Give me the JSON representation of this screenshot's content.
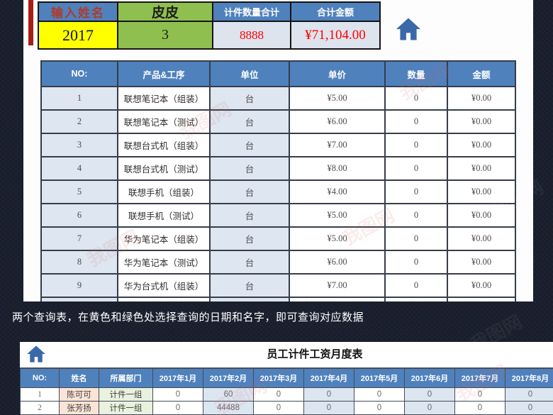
{
  "note": "两个查询表，在黄色和绿色处选择查询的日期和名字，即可查询对应数据",
  "watermark_text": "我图网",
  "colors": {
    "header_blue": "#4f81bd",
    "selector_green": "#8fc04f",
    "selector_yellow": "#ffff00",
    "result_red": "#ff0000",
    "row_light_blue": "#dde6f1",
    "name_peach": "#fbe3d6",
    "group_green": "#e9f1df",
    "background_navy": "#181d2b",
    "home_icon_blue": "#3a69a9",
    "left_strip_red": "#a81d15"
  },
  "query_panel": {
    "name_label": "输入姓名",
    "name_value": "皮皮",
    "date_value": "2017",
    "month_value": "3",
    "qty_label": "计件数量合计",
    "qty_value": "8888",
    "amount_label": "合计金额",
    "amount_value": "¥71,104.00"
  },
  "price_table": {
    "headers": [
      "NO:",
      "产品&工序",
      "单位",
      "单价",
      "数量",
      "金额"
    ],
    "rows": [
      [
        "1",
        "联想笔记本（组装）",
        "台",
        "¥5.00",
        "0",
        "¥0.00"
      ],
      [
        "2",
        "联想笔记本（测试）",
        "台",
        "¥6.00",
        "0",
        "¥0.00"
      ],
      [
        "3",
        "联想台式机（组装）",
        "台",
        "¥7.00",
        "0",
        "¥0.00"
      ],
      [
        "4",
        "联想台式机（测试）",
        "台",
        "¥8.00",
        "0",
        "¥0.00"
      ],
      [
        "5",
        "联想手机（组装）",
        "台",
        "¥4.00",
        "0",
        "¥0.00"
      ],
      [
        "6",
        "联想手机（测试）",
        "台",
        "¥5.00",
        "0",
        "¥0.00"
      ],
      [
        "7",
        "华为笔记本（组装）",
        "台",
        "¥5.00",
        "0",
        "¥0.00"
      ],
      [
        "8",
        "华为笔记本（测试）",
        "台",
        "¥6.00",
        "0",
        "¥0.00"
      ],
      [
        "9",
        "华为台式机（组装）",
        "台",
        "¥7.00",
        "0",
        "¥0.00"
      ],
      [
        "",
        "",
        "",
        "",
        "",
        ""
      ]
    ]
  },
  "monthly_table": {
    "title": "员工计件工资月度表",
    "headers": [
      "NO:",
      "姓名",
      "所属部门",
      "2017年1月",
      "2017年2月",
      "2017年3月",
      "2017年4月",
      "2017年5月",
      "2017年6月",
      "2017年7月",
      "2017年8月"
    ],
    "rows": [
      [
        "1",
        "陈可可",
        "计件一组",
        "0",
        "60",
        "0",
        "0",
        "0",
        "0",
        "0",
        "0"
      ],
      [
        "2",
        "张芳扬",
        "计件一组",
        "0",
        "44488",
        "0",
        "0",
        "0",
        "0",
        "0",
        "0"
      ]
    ]
  }
}
